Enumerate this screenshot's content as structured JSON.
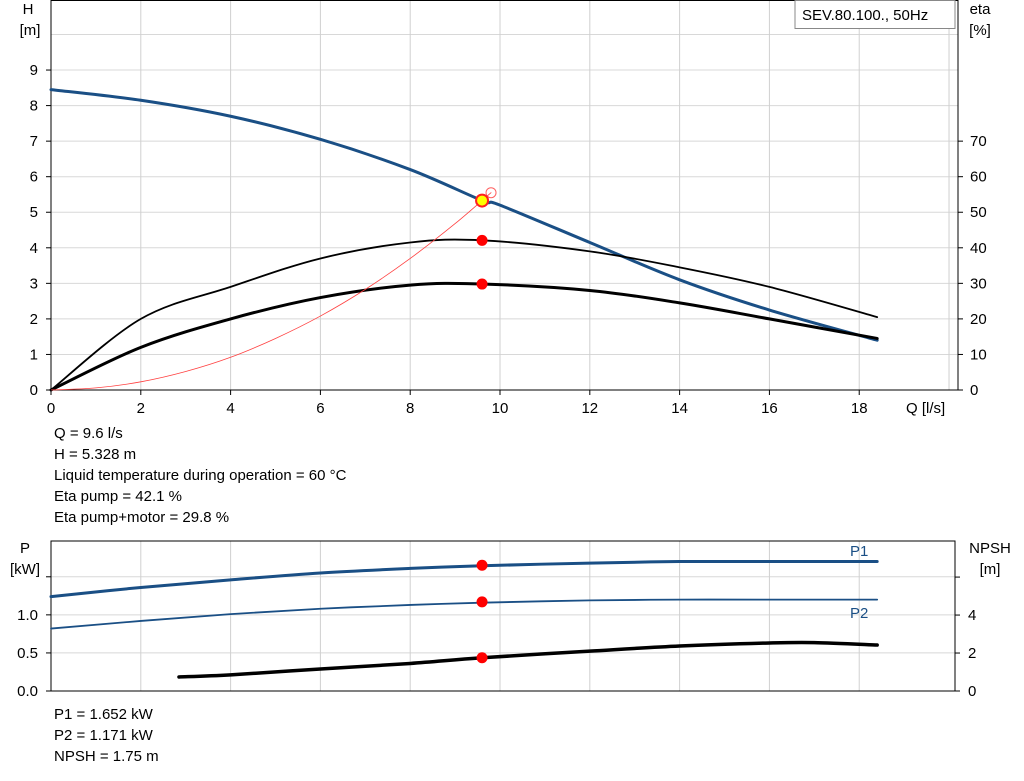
{
  "legend_box": "SEV.80.100., 50Hz",
  "chart_data": [
    {
      "type": "line",
      "xlabel": "Q [l/s]",
      "ylabel_left": [
        "H",
        "[m]"
      ],
      "ylabel_right": [
        "eta",
        "[%]"
      ],
      "xlim": [
        0,
        20.2
      ],
      "ylim_left": [
        0,
        10.97
      ],
      "ylim_right": [
        0,
        109.7
      ],
      "x_ticks": [
        "0",
        "2",
        "4",
        "6",
        "8",
        "10",
        "12",
        "14",
        "16",
        "18"
      ],
      "y_ticks_left": [
        "0",
        "1",
        "2",
        "3",
        "4",
        "5",
        "6",
        "7",
        "8",
        "9"
      ],
      "y_ticks_right": [
        "0",
        "10",
        "20",
        "30",
        "40",
        "50",
        "60",
        "70"
      ],
      "grid": true,
      "series": [
        {
          "id": "H",
          "axis": "left",
          "color": "#1a4f85",
          "width": 3,
          "x": [
            0,
            2,
            4,
            6,
            8,
            9.6,
            10,
            12,
            14,
            16,
            18.4
          ],
          "y": [
            8.45,
            8.15,
            7.7,
            7.05,
            6.2,
            5.33,
            5.2,
            4.15,
            3.1,
            2.25,
            1.4
          ]
        },
        {
          "id": "eta-pump",
          "axis": "right",
          "color": "#000000",
          "width": 1.8,
          "x": [
            0,
            2,
            4,
            6,
            8,
            9.6,
            12,
            14,
            16,
            18.4
          ],
          "y": [
            0,
            20,
            29,
            37,
            41.5,
            42.1,
            39,
            34.5,
            29,
            20.5
          ]
        },
        {
          "id": "eta-pump-motor",
          "axis": "right",
          "color": "#000000",
          "width": 3,
          "x": [
            0,
            2,
            4,
            6,
            8,
            9.6,
            12,
            14,
            16,
            18.4
          ],
          "y": [
            0,
            12,
            20,
            26,
            29.5,
            29.8,
            28,
            24.5,
            20,
            14.5
          ]
        },
        {
          "id": "system-curve",
          "axis": "left",
          "color": "#ff4040",
          "width": 0.8,
          "x": [
            0,
            1,
            2,
            3,
            4,
            5,
            6,
            7,
            8,
            9,
            9.8
          ],
          "y": [
            0,
            0.06,
            0.23,
            0.52,
            0.92,
            1.45,
            2.08,
            2.83,
            3.7,
            4.68,
            5.55
          ]
        }
      ],
      "operating_point": {
        "Q": 9.6,
        "H": 5.328,
        "eta_pump": 42.1,
        "eta_pump_motor": 29.8
      },
      "readout": [
        "Q = 9.6 l/s",
        "H = 5.328 m",
        "Liquid temperature during operation = 60 °C",
        "Eta pump = 42.1 %",
        "Eta pump+motor = 29.8 %"
      ]
    },
    {
      "type": "line",
      "ylabel_left": [
        "P",
        "[kW]"
      ],
      "ylabel_right": [
        "NPSH",
        "[m]"
      ],
      "xlim": [
        0,
        20.2
      ],
      "ylim_left": [
        0,
        1.97
      ],
      "ylim_right": [
        0,
        7.9
      ],
      "y_ticks_left": [
        "0.0",
        "0.5",
        "1.0",
        ""
      ],
      "y_ticks_right": [
        "0",
        "2",
        "4",
        ""
      ],
      "grid": true,
      "series": [
        {
          "id": "P1",
          "name": "P1",
          "axis": "left",
          "color": "#1a4f85",
          "width": 3,
          "x": [
            0,
            2,
            4,
            6,
            8,
            9.6,
            12,
            14,
            16,
            18.4
          ],
          "y": [
            1.24,
            1.36,
            1.46,
            1.55,
            1.61,
            1.645,
            1.68,
            1.7,
            1.7,
            1.7
          ]
        },
        {
          "id": "P2",
          "name": "P2",
          "axis": "left",
          "color": "#1a4f85",
          "width": 1.8,
          "x": [
            0,
            2,
            4,
            6,
            8,
            9.6,
            12,
            14,
            16,
            18.4
          ],
          "y": [
            0.82,
            0.92,
            1.01,
            1.08,
            1.13,
            1.16,
            1.19,
            1.2,
            1.2,
            1.2
          ]
        },
        {
          "id": "NPSH",
          "axis": "right",
          "color": "#000000",
          "width": 3.5,
          "x": [
            2.85,
            4,
            6,
            8,
            9.6,
            12,
            14,
            16,
            17,
            18.4
          ],
          "y": [
            0.74,
            0.85,
            1.16,
            1.45,
            1.75,
            2.1,
            2.37,
            2.53,
            2.55,
            2.42
          ]
        }
      ],
      "operating_point": {
        "P1": 1.652,
        "P2": 1.171,
        "NPSH": 1.75
      },
      "readout": [
        "P1 = 1.652 kW",
        "P2 = 1.171 kW",
        "NPSH = 1.75 m"
      ]
    }
  ]
}
